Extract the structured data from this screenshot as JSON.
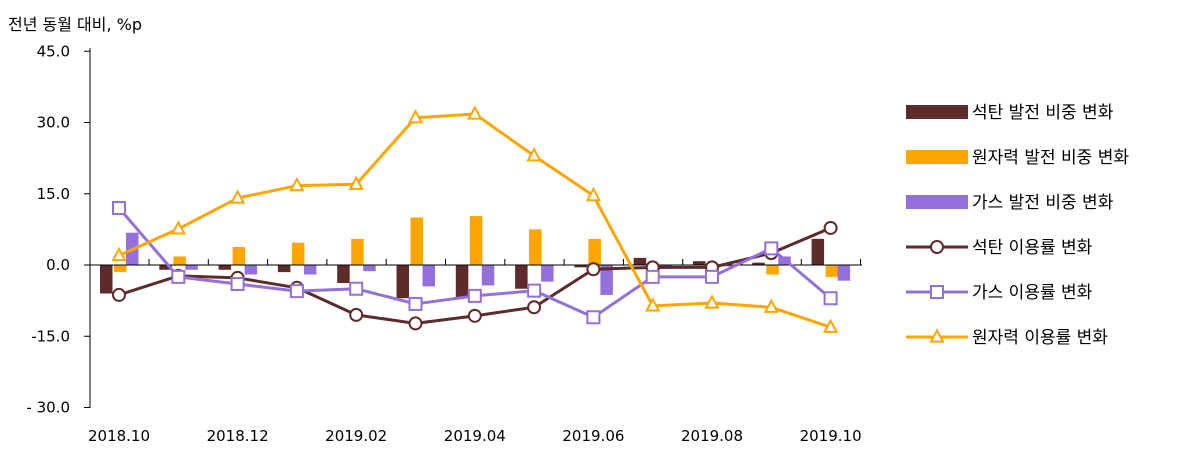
{
  "chart_data": {
    "type": "bar+line",
    "unit_label": "전년 동월 대비, %p",
    "y_axis": {
      "min": -30,
      "max": 45,
      "ticks": [
        45,
        30,
        15,
        0,
        -15,
        -30
      ],
      "tick_labels": [
        "45.0",
        "30.0",
        "15.0",
        "0.0",
        "-15.0",
        "- 30.0"
      ]
    },
    "x_tick_labels": [
      "2018.10",
      "2018.12",
      "2019.02",
      "2019.04",
      "2019.06",
      "2019.08",
      "2019.10"
    ],
    "x_tick_indices": [
      0,
      2,
      4,
      6,
      8,
      10,
      12
    ],
    "periods": [
      "2018.10",
      "2018.11",
      "2018.12",
      "2019.01",
      "2019.02",
      "2019.03",
      "2019.04",
      "2019.05",
      "2019.06",
      "2019.07",
      "2019.08",
      "2019.09",
      "2019.10"
    ],
    "bar_series": [
      {
        "name": "석탄 발전 비중 변화",
        "color": "#5e2a2a",
        "values": [
          -6.0,
          -1.0,
          -1.0,
          -1.5,
          -3.8,
          -7.0,
          -7.0,
          -5.0,
          -0.5,
          1.5,
          0.8,
          0.5,
          5.5
        ]
      },
      {
        "name": "원자력 발전 비중 변화",
        "color": "#ffa500",
        "values": [
          -1.5,
          1.8,
          3.8,
          4.7,
          5.5,
          10.0,
          10.3,
          7.5,
          5.5,
          -0.5,
          -0.5,
          -2.0,
          -2.5
        ]
      },
      {
        "name": "가스 발전 비중 변화",
        "color": "#9370db",
        "values": [
          6.8,
          -1.0,
          -2.0,
          -2.0,
          -1.3,
          -4.5,
          -4.3,
          -3.5,
          -6.3,
          -0.8,
          -0.3,
          1.8,
          -3.3
        ]
      }
    ],
    "line_series": [
      {
        "name": "석탄 이용률 변화",
        "color": "#5e2a2a",
        "marker": "circle",
        "values": [
          -6.3,
          -2.3,
          -2.7,
          -4.8,
          -10.5,
          -12.3,
          -10.7,
          -8.9,
          -0.9,
          -0.5,
          -0.5,
          2.5,
          7.8
        ]
      },
      {
        "name": "가스 이용률 변화",
        "color": "#9370db",
        "marker": "square",
        "values": [
          12.0,
          -2.5,
          -4.0,
          -5.5,
          -5.0,
          -8.2,
          -6.5,
          -5.4,
          -11.0,
          -2.5,
          -2.5,
          3.5,
          -7.0
        ]
      },
      {
        "name": "원자력 이용률 변화",
        "color": "#ffa500",
        "marker": "triangle",
        "values": [
          2.0,
          7.6,
          14.1,
          16.7,
          17.0,
          31.0,
          31.8,
          23.0,
          14.6,
          -8.6,
          -8.0,
          -8.9,
          -13.1
        ]
      }
    ],
    "legend_placement": "right",
    "grid": false
  }
}
